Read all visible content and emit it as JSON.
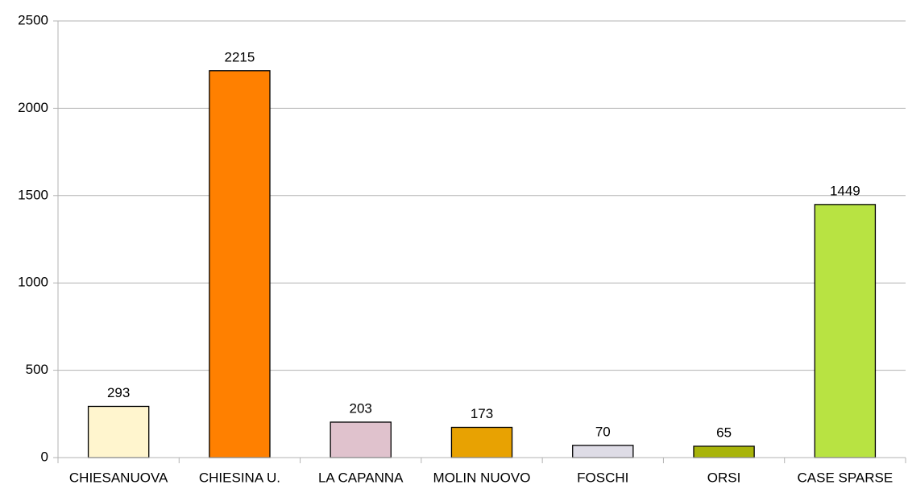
{
  "chart_data": {
    "type": "bar",
    "categories": [
      "CHIESANUOVA",
      "CHIESINA U.",
      "LA CAPANNA",
      "MOLIN NUOVO",
      "FOSCHI",
      "ORSI",
      "CASE SPARSE"
    ],
    "values": [
      293,
      2215,
      203,
      173,
      70,
      65,
      1449
    ],
    "colors": [
      "#fff5ce",
      "#ff8000",
      "#e0c2cd",
      "#e8a202",
      "#dedce6",
      "#a8b40a",
      "#b8e342"
    ],
    "ylim": [
      0,
      2500
    ],
    "yticks": [
      0,
      500,
      1000,
      1500,
      2000,
      2500
    ],
    "grid": true
  }
}
